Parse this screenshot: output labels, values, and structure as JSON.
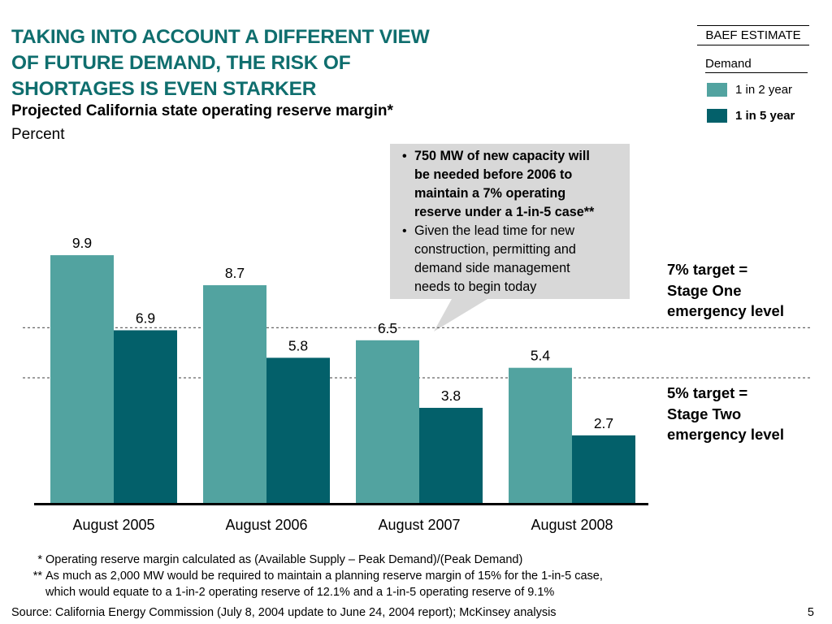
{
  "header": {
    "title_lines": [
      "TAKING INTO ACCOUNT A DIFFERENT VIEW",
      "OF FUTURE DEMAND, THE RISK OF",
      "SHORTAGES IS EVEN STARKER"
    ],
    "estimate_label": "BAEF ESTIMATE"
  },
  "legend": {
    "title": "Demand",
    "items": [
      {
        "label": "1 in 2 year",
        "color": "#52a3a0"
      },
      {
        "label": "1 in 5 year",
        "color": "#03606a"
      }
    ]
  },
  "callout": {
    "bullets": [
      {
        "lines": [
          "750 MW of new capacity will",
          "be needed before 2006 to",
          "maintain a 7% operating",
          "reserve under a 1-in-5 case**"
        ],
        "bold": true
      },
      {
        "lines": [
          "Given the lead time for new",
          "construction, permitting and",
          "demand side management",
          "needs to begin today"
        ],
        "bold": false
      }
    ]
  },
  "targets": {
    "seven": [
      "7% target =",
      "Stage One",
      "emergency level"
    ],
    "five": [
      "5% target =",
      "Stage Two",
      "emergency level"
    ]
  },
  "footnotes": [
    {
      "mark": "*",
      "lines": [
        "Operating reserve margin calculated as (Available Supply – Peak Demand)/(Peak Demand)"
      ]
    },
    {
      "mark": "**",
      "lines": [
        "As much as 2,000 MW would be required to maintain a planning reserve margin of 15% for the 1-in-5 case,",
        "which would equate to a 1-in-2 operating reserve of 12.1% and a 1-in-5 operating reserve of 9.1%"
      ]
    }
  ],
  "source": "Source: California Energy Commission (July 8, 2004 update to June 24, 2004 report); McKinsey analysis",
  "page_number": "5",
  "chart_data": {
    "type": "bar",
    "title": "Projected California state operating reserve margin*",
    "ylabel": "Percent",
    "categories": [
      "August 2005",
      "August 2006",
      "August 2007",
      "August 2008"
    ],
    "series": [
      {
        "name": "1 in 2 year",
        "values": [
          9.9,
          8.7,
          6.5,
          5.4
        ],
        "color": "#52a3a0"
      },
      {
        "name": "1 in 5 year",
        "values": [
          6.9,
          5.8,
          3.8,
          2.7
        ],
        "color": "#03606a"
      }
    ],
    "value_labels": [
      [
        "9.9",
        "8.7",
        "6.5",
        "5.4"
      ],
      [
        "6.9",
        "5.8",
        "3.8",
        "2.7"
      ]
    ],
    "reference_lines": [
      7,
      5
    ],
    "ylim": [
      0,
      10
    ],
    "grid": false,
    "legend_position": "top-right"
  }
}
